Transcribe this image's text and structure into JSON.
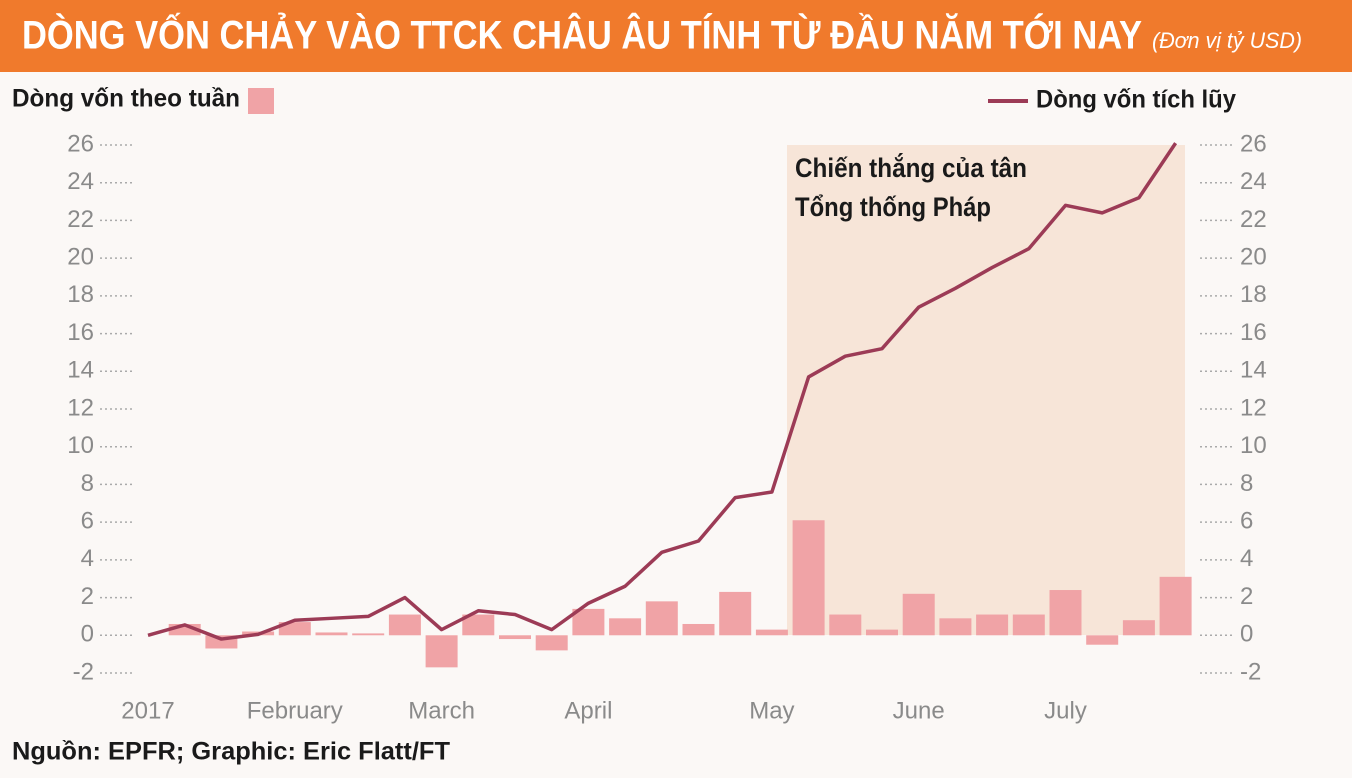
{
  "chart_data": {
    "type": "combo",
    "title": "DÒNG VỐN CHẢY VÀO TTCK CHÂU ÂU TÍNH TỪ ĐẦU NĂM TỚI NAY",
    "subtitle": "(Đơn vị tỷ USD)",
    "annotation": [
      "Chiến thắng của tân",
      "Tổng thống Pháp"
    ],
    "source": "Nguồn: EPFR; Graphic: Eric Flatt/FT",
    "categories": [
      "2017",
      null,
      null,
      null,
      "February",
      null,
      null,
      null,
      "March",
      null,
      null,
      null,
      "April",
      null,
      null,
      null,
      null,
      "May",
      null,
      null,
      null,
      "June",
      null,
      null,
      null,
      "July",
      null,
      null,
      null
    ],
    "series": [
      {
        "name": "Dòng vốn theo tuần",
        "type": "bar",
        "color": "#f0a3a6",
        "values": [
          null,
          0.6,
          -0.7,
          0.2,
          0.7,
          0.15,
          0.1,
          1.1,
          -1.7,
          1.1,
          -0.2,
          -0.8,
          1.4,
          0.9,
          1.8,
          0.6,
          2.3,
          0.3,
          6.1,
          1.1,
          0.3,
          2.2,
          0.9,
          1.1,
          1.1,
          2.4,
          -0.5,
          0.8,
          3.1
        ]
      },
      {
        "name": "Dòng vốn tích lũy",
        "type": "line",
        "axis": "y2",
        "color": "#9c3b56",
        "values": [
          0,
          0.55,
          -0.2,
          0.05,
          0.8,
          0.9,
          1.0,
          2.0,
          0.3,
          1.3,
          1.1,
          0.3,
          1.7,
          2.6,
          4.4,
          5.0,
          7.3,
          7.6,
          13.7,
          14.8,
          15.2,
          17.4,
          18.4,
          19.5,
          20.5,
          22.8,
          22.4,
          23.2,
          26.1
        ]
      }
    ],
    "ylim": [
      -2,
      26
    ],
    "yticks": [
      -2,
      0,
      2,
      4,
      6,
      8,
      10,
      12,
      14,
      16,
      18,
      20,
      22,
      24,
      26
    ],
    "y2lim": [
      -2,
      26
    ],
    "y2ticks": [
      -2,
      0,
      2,
      4,
      6,
      8,
      10,
      12,
      14,
      16,
      18,
      20,
      22,
      24,
      26
    ],
    "grid": true
  }
}
